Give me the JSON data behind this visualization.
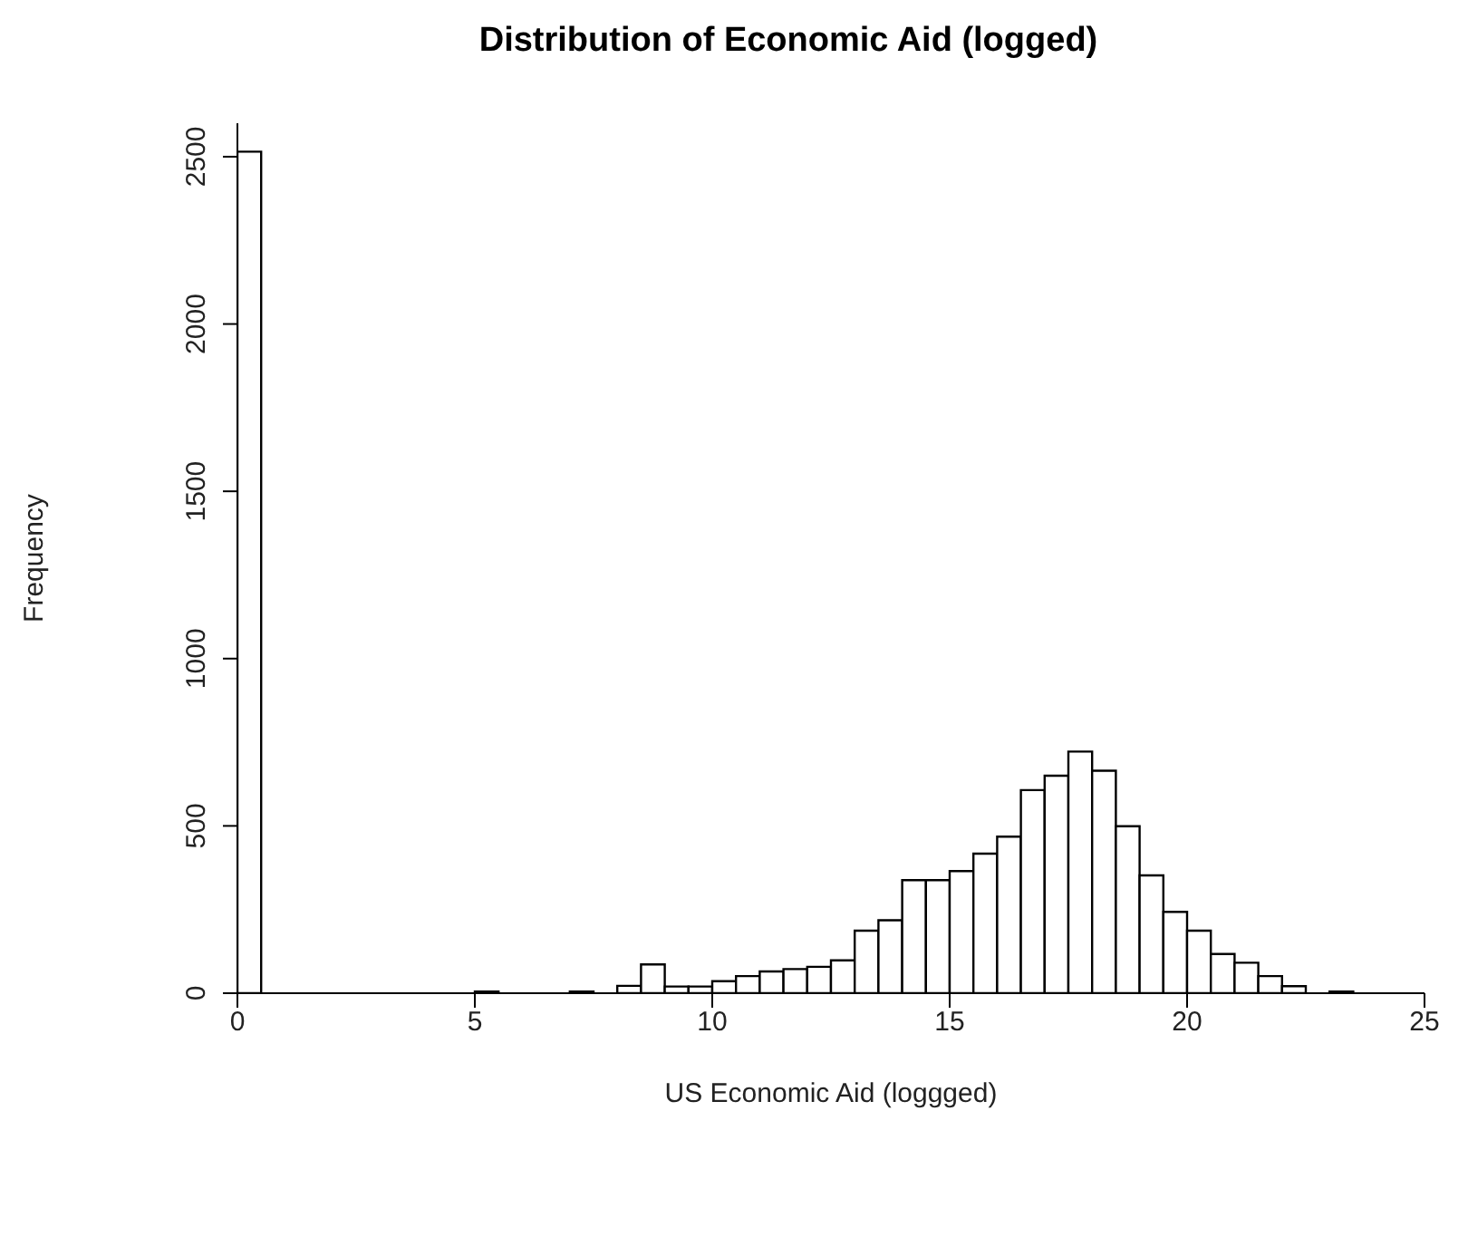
{
  "chart_data": {
    "type": "histogram",
    "title": "Distribution of Economic Aid (logged)",
    "xlabel": "US Economic Aid (loggged)",
    "ylabel": "Frequency",
    "bins": [
      0,
      0.5,
      1,
      1.5,
      2,
      2.5,
      3,
      3.5,
      4,
      4.5,
      5,
      5.5,
      6,
      6.5,
      7,
      7.5,
      8,
      8.5,
      9,
      9.5,
      10,
      10.5,
      11,
      11.5,
      12,
      12.5,
      13,
      13.5,
      14,
      14.5,
      15,
      15.5,
      16,
      16.5,
      17,
      17.5,
      18,
      18.5,
      19,
      19.5,
      20,
      20.5,
      21,
      21.5,
      22,
      22.5,
      23,
      23.5,
      24,
      24.5
    ],
    "values": [
      2515,
      0,
      0,
      0,
      0,
      0,
      0,
      0,
      0,
      0,
      5,
      0,
      0,
      0,
      5,
      0,
      22,
      86,
      20,
      20,
      36,
      51,
      65,
      72,
      79,
      98,
      187,
      218,
      338,
      338,
      365,
      417,
      468,
      607,
      650,
      722,
      665,
      499,
      352,
      243,
      187,
      117,
      91,
      51,
      21,
      0,
      5,
      0,
      0
    ],
    "color": "#ffffff",
    "xlim": [
      0,
      25
    ],
    "xticks": [
      0,
      5,
      10,
      15,
      20,
      25
    ],
    "ylim": [
      0,
      2600
    ],
    "yticks": [
      0,
      500,
      1000,
      1500,
      2000,
      2500
    ],
    "grid": false
  }
}
